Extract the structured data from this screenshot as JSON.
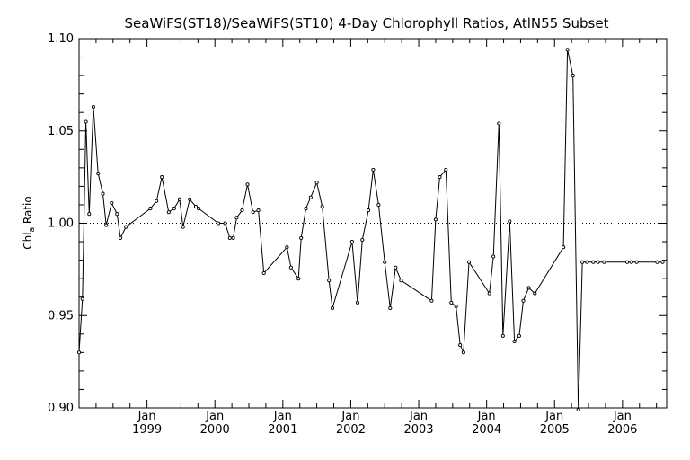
{
  "chart_data": {
    "type": "line",
    "title": "SeaWiFS(ST18)/SeaWiFS(ST10) 4-Day Chlorophyll Ratios, AtlN55 Subset",
    "ylabel_main": "Chl",
    "ylabel_sub": "a",
    "ylabel_rest": " Ratio",
    "xlabel": "",
    "ylim": [
      0.9,
      1.1
    ],
    "xlim": [
      1998.0,
      2006.65
    ],
    "y_ticks": [
      0.9,
      0.95,
      1.0,
      1.05,
      1.1
    ],
    "y_tick_labels": [
      "0.90",
      "0.95",
      "1.00",
      "1.05",
      "1.10"
    ],
    "x_ticks": [
      {
        "year": 1999,
        "month": "Jan",
        "label": "1999"
      },
      {
        "year": 2000,
        "month": "Jan",
        "label": "2000"
      },
      {
        "year": 2001,
        "month": "Jan",
        "label": "2001"
      },
      {
        "year": 2002,
        "month": "Jan",
        "label": "2002"
      },
      {
        "year": 2003,
        "month": "Jan",
        "label": "2003"
      },
      {
        "year": 2004,
        "month": "Jan",
        "label": "2004"
      },
      {
        "year": 2005,
        "month": "Jan",
        "label": "2005"
      },
      {
        "year": 2006,
        "month": "Jan",
        "label": "2006"
      }
    ],
    "reference_line": 1.0,
    "grid": false,
    "series": [
      {
        "x": [
          1998.0,
          1998.05,
          1998.1,
          1998.15,
          1998.21,
          1998.28,
          1998.35,
          1998.4,
          1998.48,
          1998.56,
          1998.61,
          1998.69,
          1999.05,
          1999.14,
          1999.22,
          1999.32,
          1999.4,
          1999.48,
          1999.53,
          1999.63,
          1999.72,
          1999.76,
          2000.05,
          2000.15,
          2000.22,
          2000.27,
          2000.32,
          2000.4,
          2000.48,
          2000.56,
          2000.64,
          2000.72,
          2001.06,
          2001.12,
          2001.23,
          2001.27,
          2001.34,
          2001.41,
          2001.5,
          2001.58,
          2001.68,
          2001.73,
          2002.02,
          2002.1,
          2002.17,
          2002.26,
          2002.33,
          2002.41,
          2002.5,
          2002.58,
          2002.66,
          2002.74,
          2003.19,
          2003.25,
          2003.31,
          2003.4,
          2003.48,
          2003.55,
          2003.61,
          2003.66,
          2003.74,
          2004.04,
          2004.1,
          2004.18,
          2004.24,
          2004.34,
          2004.41,
          2004.48,
          2004.54,
          2004.62,
          2004.71,
          2005.13,
          2005.19,
          2005.27,
          2005.35,
          2005.41,
          2005.48,
          2005.57,
          2005.64,
          2005.73,
          2006.07,
          2006.13,
          2006.21,
          2006.51,
          2006.59
        ],
        "y": [
          0.93,
          0.959,
          1.055,
          1.005,
          1.063,
          1.027,
          1.016,
          0.999,
          1.011,
          1.005,
          0.992,
          0.998,
          1.008,
          1.012,
          1.025,
          1.006,
          1.008,
          1.013,
          0.998,
          1.013,
          1.009,
          1.008,
          1.0,
          1.0,
          0.992,
          0.992,
          1.003,
          1.007,
          1.021,
          1.006,
          1.007,
          0.973,
          0.987,
          0.976,
          0.97,
          0.992,
          1.008,
          1.014,
          1.022,
          1.009,
          0.969,
          0.954,
          0.99,
          0.957,
          0.991,
          1.007,
          1.029,
          1.01,
          0.979,
          0.954,
          0.976,
          0.969,
          0.958,
          1.002,
          1.025,
          1.029,
          0.957,
          0.955,
          0.934,
          0.93,
          0.979,
          0.962,
          0.982,
          1.054,
          0.939,
          1.001,
          0.936,
          0.939,
          0.958,
          0.965,
          0.962,
          0.987,
          1.094,
          1.08,
          0.899,
          0.979,
          0.979,
          0.979,
          0.979,
          0.979,
          0.979,
          0.979,
          0.979,
          0.979,
          0.979
        ]
      }
    ]
  }
}
